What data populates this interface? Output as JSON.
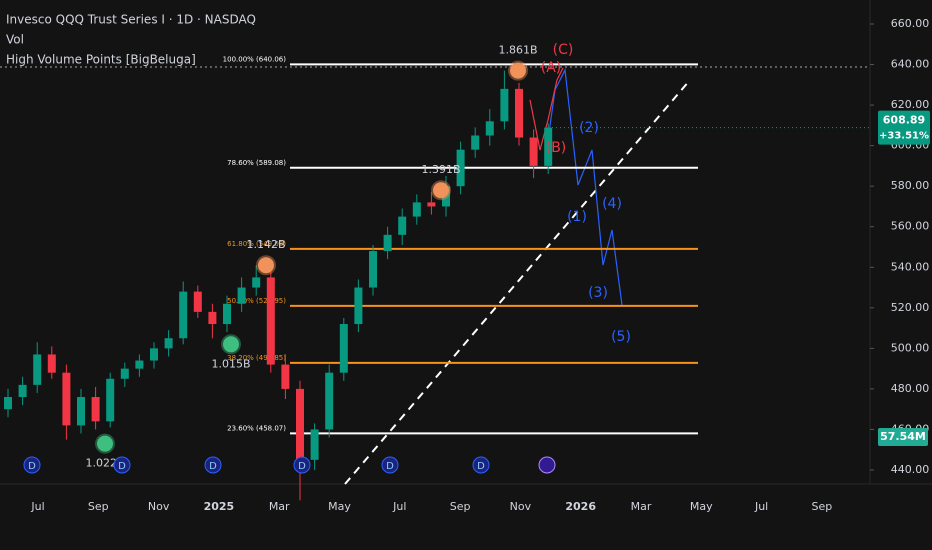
{
  "header": {
    "symbol": "Invesco QQQ Trust Series I · 1D · NASDAQ",
    "volume_label": "Vol",
    "indicator": "High Volume Points [BigBeluga]"
  },
  "chart_data": {
    "type": "candlestick",
    "open": [
      470,
      476,
      482,
      497,
      488,
      462,
      476,
      464,
      485,
      490,
      494,
      500,
      505,
      528,
      518,
      512,
      522,
      530,
      535,
      492,
      480,
      445,
      460,
      488,
      512,
      530,
      548,
      556,
      565,
      572,
      570,
      580,
      598,
      605,
      612,
      628,
      604,
      590
    ],
    "high": [
      480,
      486,
      503,
      501,
      492,
      480,
      481,
      488,
      493,
      497,
      503,
      509,
      533,
      531,
      522,
      526,
      535,
      541,
      538,
      497,
      484,
      463,
      492,
      515,
      534,
      551,
      560,
      569,
      576,
      577,
      585,
      602,
      609,
      618,
      637,
      631,
      608,
      611
    ],
    "low": [
      466,
      472,
      478,
      485,
      455,
      458,
      460,
      461,
      481,
      486,
      490,
      496,
      502,
      515,
      505,
      508,
      518,
      526,
      488,
      475,
      425,
      440,
      456,
      484,
      508,
      526,
      544,
      551,
      561,
      566,
      565,
      576,
      594,
      600,
      608,
      600,
      584,
      586
    ],
    "close": [
      476,
      482,
      497,
      488,
      462,
      476,
      464,
      485,
      490,
      494,
      500,
      505,
      528,
      518,
      512,
      522,
      530,
      535,
      492,
      480,
      445,
      460,
      488,
      512,
      530,
      548,
      556,
      565,
      572,
      570,
      580,
      598,
      605,
      612,
      628,
      604,
      590,
      608.89
    ],
    "up_color": "#089981",
    "down_color": "#f23645",
    "ylim": [
      440,
      660
    ],
    "yticks": [
      {
        "value": 440,
        "label": "440.00"
      },
      {
        "value": 460,
        "label": "460.00"
      },
      {
        "value": 480,
        "label": "480.00"
      },
      {
        "value": 500,
        "label": "500.00"
      },
      {
        "value": 520,
        "label": "520.00"
      },
      {
        "value": 540,
        "label": "540.00"
      },
      {
        "value": 560,
        "label": "560.00"
      },
      {
        "value": 580,
        "label": "580.00"
      },
      {
        "value": 600,
        "label": "600.00"
      },
      {
        "value": 620,
        "label": "620.00"
      },
      {
        "value": 640,
        "label": "640.00"
      },
      {
        "value": 660,
        "label": "660.00"
      }
    ],
    "xticks": [
      "Jul",
      "Sep",
      "Nov",
      "2025",
      "Mar",
      "May",
      "Jul",
      "Sep",
      "Nov",
      "2026",
      "Mar",
      "May",
      "Jul",
      "Sep"
    ],
    "fib_levels": [
      {
        "label": "100.00% (640.06)",
        "value": 640.06,
        "color": "#ffffff"
      },
      {
        "label": "78.60% (589.08)",
        "value": 589.08,
        "color": "#ffffff"
      },
      {
        "label": "61.80% (549.08)",
        "value": 549.08,
        "color": "#f7931a"
      },
      {
        "label": "50.00% (520.95)",
        "value": 520.95,
        "color": "#f7931a"
      },
      {
        "label": "38.20% (492.85)",
        "value": 492.85,
        "color": "#f7931a"
      },
      {
        "label": "23.60% (458.07)",
        "value": 458.07,
        "color": "#ffffff"
      }
    ],
    "volume_points": [
      {
        "label": "1.022B",
        "price": 453,
        "color": "#3fbf7f"
      },
      {
        "label": "1.015B",
        "price": 502,
        "color": "#3fbf7f"
      },
      {
        "label": "1.142B",
        "price": 541,
        "color": "#f0925a"
      },
      {
        "label": "1.391B",
        "price": 578,
        "color": "#f0925a"
      },
      {
        "label": "1.861B",
        "price": 637,
        "color": "#f0925a"
      }
    ],
    "wave_labels": [
      "(A)",
      "(B)",
      "(C)",
      "(1)",
      "(2)",
      "(3)",
      "(4)",
      "(5)"
    ],
    "dividend_label": "D",
    "last_price": {
      "value": 608.89,
      "change": "+33.51%"
    },
    "last_volume": "57.54M"
  }
}
